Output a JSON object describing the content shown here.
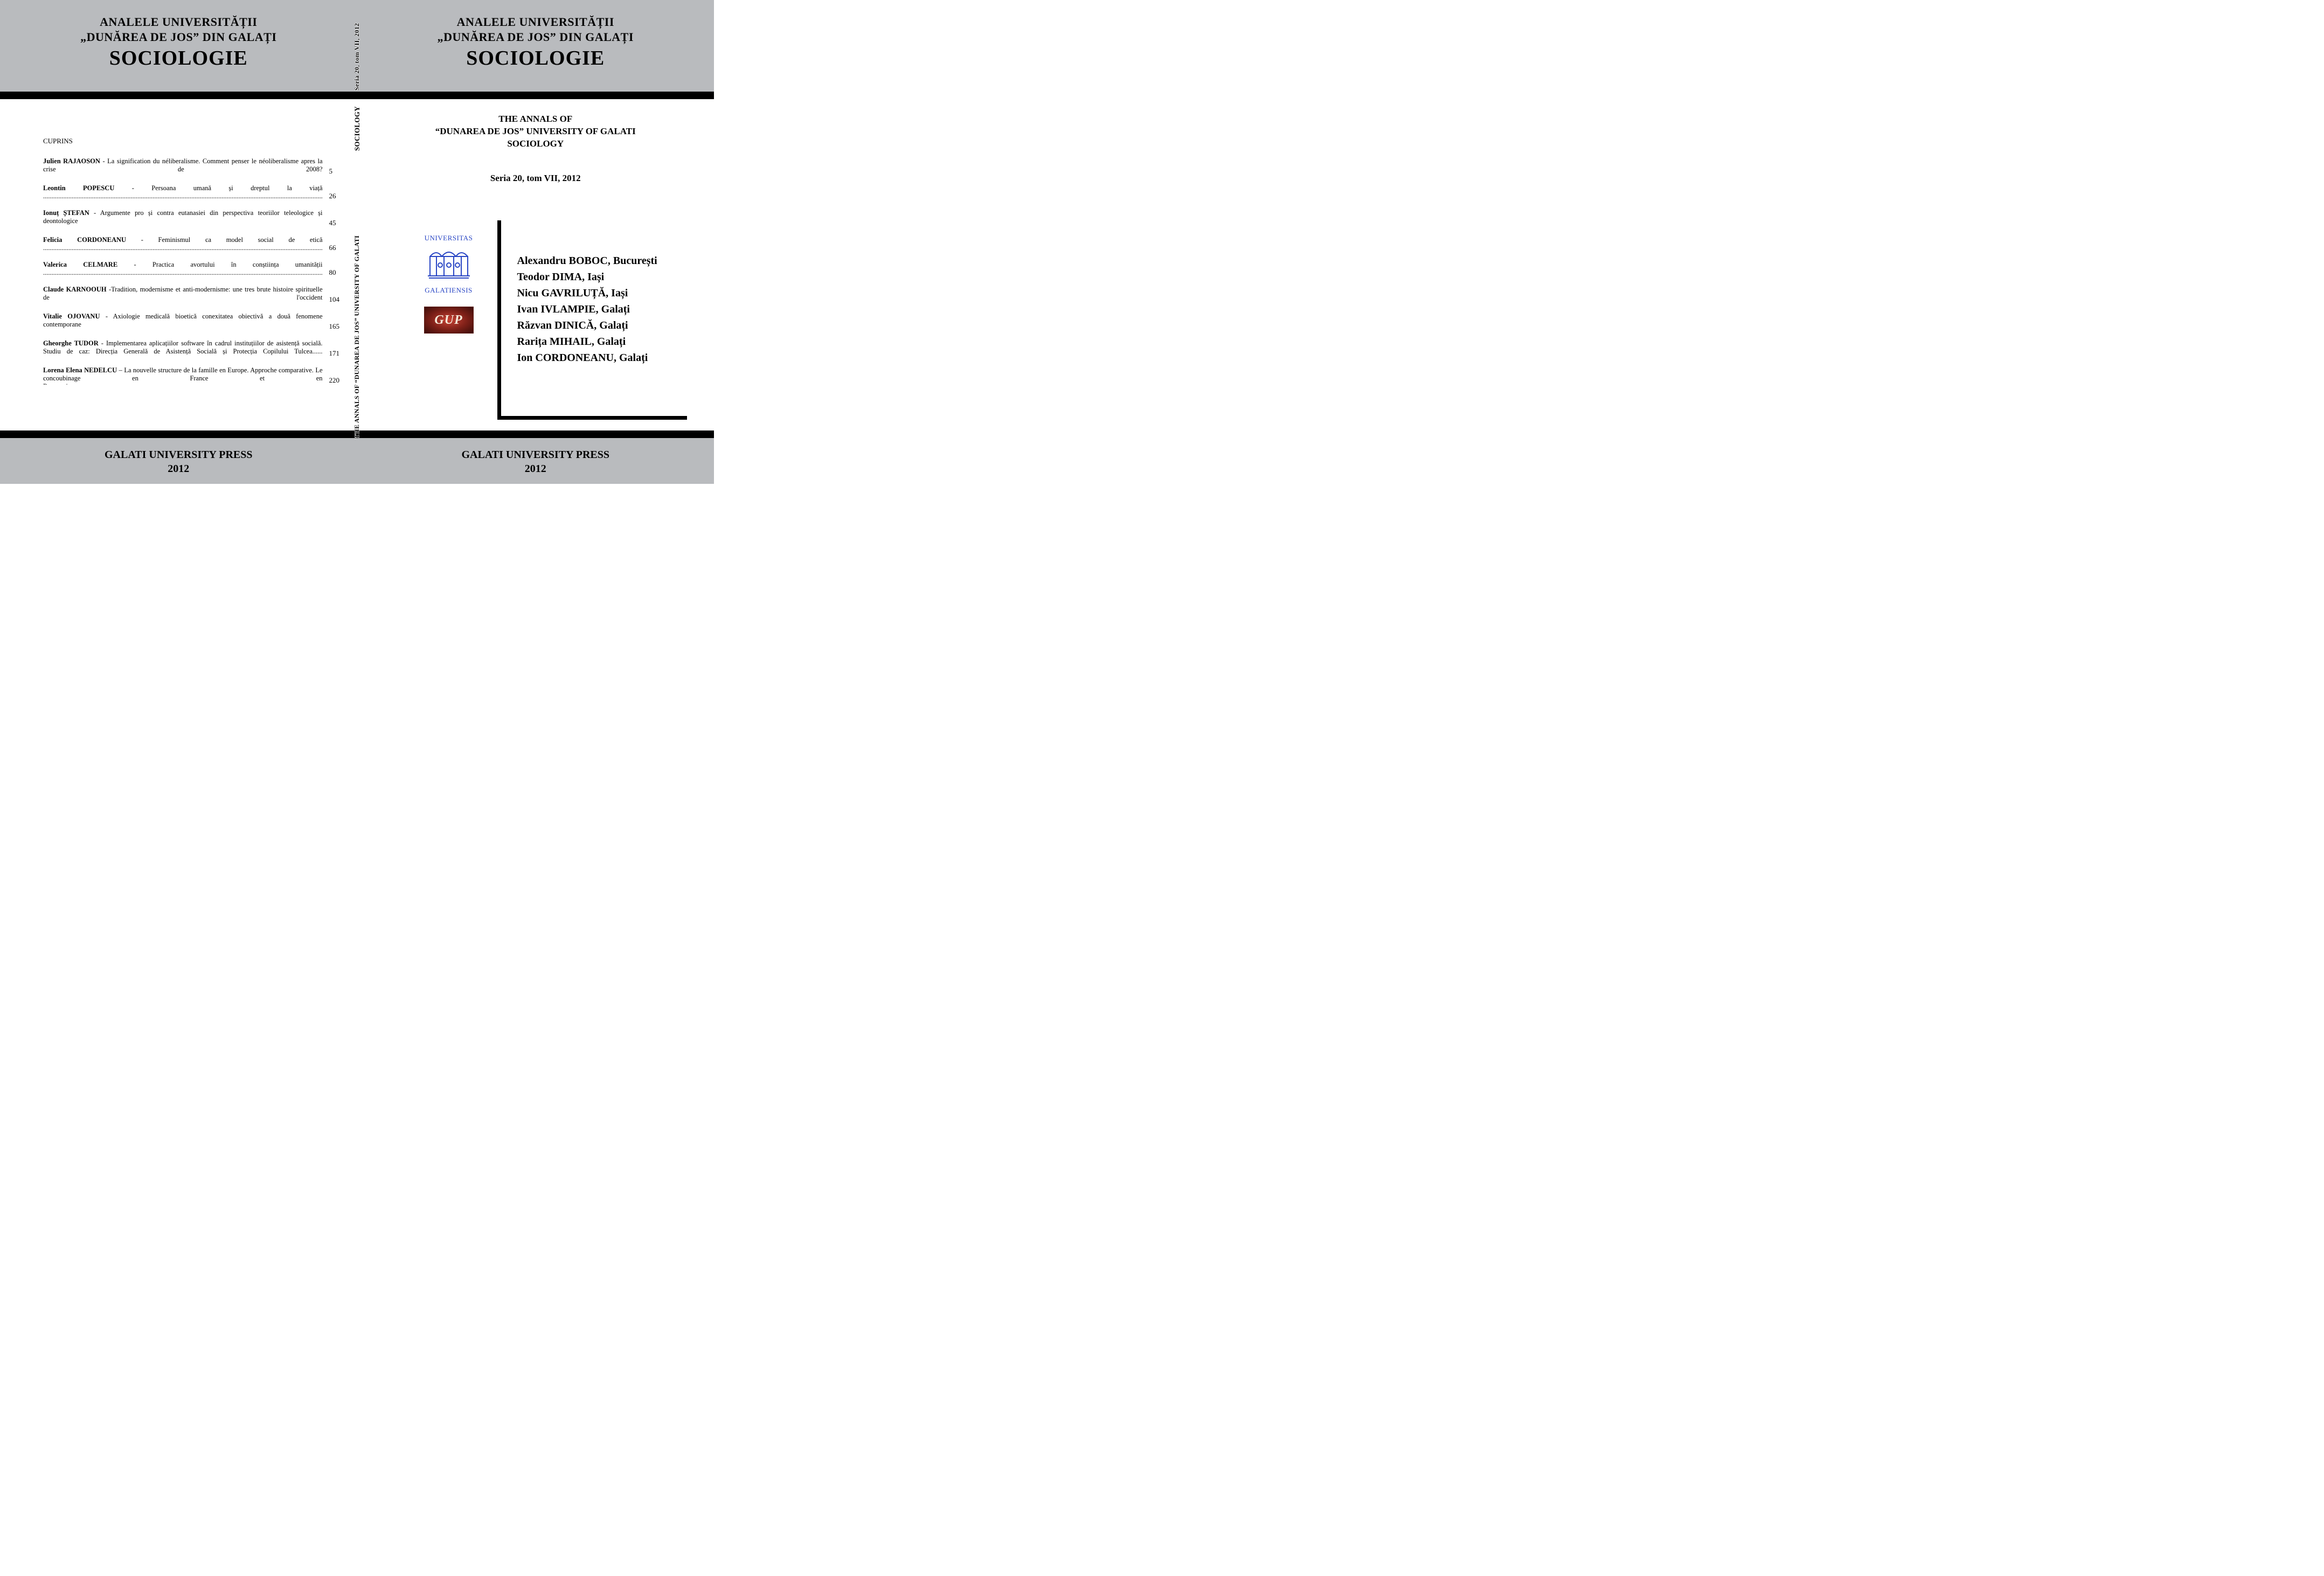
{
  "colors": {
    "band_bg": "#b9bbbe",
    "black": "#000000",
    "white": "#ffffff",
    "logo_blue": "#2845c4",
    "gup_center": "#c94234",
    "gup_edge": "#3b0e0a",
    "gup_text": "#f4e9d9"
  },
  "typography": {
    "title_line_fontsize": 22,
    "title_main_fontsize": 38,
    "body_fontsize": 12.5,
    "contributor_fontsize": 20,
    "press_fontsize": 20
  },
  "back": {
    "title_line1": "ANALELE UNIVERSITĂȚII",
    "title_line2": "„DUNĂREA DE JOS” DIN GALAȚI",
    "title_main": "SOCIOLOGIE",
    "toc_heading": "CUPRINS",
    "entries": [
      {
        "author": "Julien RAJAOSON",
        "title": " - La signification du néliberalisme. Comment penser le néoliberalisme apres la crise de 2008? ",
        "page": "5"
      },
      {
        "author": "Leontin POPESCU",
        "title": " - Persoana umană și dreptul la viață ",
        "page": "26"
      },
      {
        "author": "Ionuț ȘTEFAN",
        "title": " - Argumente pro și contra eutanasiei din perspectiva teoriilor teleologice și deontologice ",
        "page": "45"
      },
      {
        "author": "Felicia CORDONEANU",
        "title": " - Feminismul ca model social de etică ",
        "page": "66"
      },
      {
        "author": "Valerica CELMARE",
        "title": " - Practica avortului în conștiința umanității ",
        "page": "80"
      },
      {
        "author": "Claude KARNOOUH",
        "title": " -Tradition, modernisme et anti-modernisme: une tres brute histoire spirituelle de l'occident ",
        "page": "104"
      },
      {
        "author": "Vitalie OJOVANU",
        "title": " - Axiologie  medicală bioetică conexitatea  obiectivă a  două fenomene contemporane ",
        "page": "165"
      },
      {
        "author": "Gheorghe TUDOR",
        "title": " - Implementarea aplicațiilor software în cadrul instituțiilor de asistență socială.  Studiu de caz:   Direcția Generală de Asistență  Socială și Protecția Copilului  Tulcea...... ",
        "page": "171"
      },
      {
        "author": "Lorena Elena NEDELCU",
        "title": " – La nouvelle structure de la famille en Europe. Approche comparative. Le concoubinage en France et en Roumanie",
        "page": "220"
      }
    ],
    "press_line1": "GALATI UNIVERSITY PRESS",
    "press_line2": "2012"
  },
  "front": {
    "title_line1": "ANALELE UNIVERSITĂȚII",
    "title_line2": "„DUNĂREA DE JOS” DIN GALAȚI",
    "title_main": "SOCIOLOGIE",
    "en_title_line1": "THE ANNALS OF",
    "en_title_line2": "“DUNAREA DE JOS” UNIVERSITY OF GALATI",
    "en_title_line3": "SOCIOLOGY",
    "seria": "Seria 20, tom VII, 2012",
    "logo_top": "UNIVERSITAS",
    "logo_bottom": "GALATIENSIS",
    "gup_text": "GUP",
    "contributors": [
      "Alexandru BOBOC, București",
      "Teodor DIMA, Iași",
      "Nicu GAVRILUȚĂ, Iași",
      "Ivan IVLAMPIE, Galați",
      "Răzvan DINICĂ, Galați",
      "Rarița MIHAIL, Galați",
      "Ion CORDONEANU, Galați"
    ],
    "press_line1": "GALATI UNIVERSITY PRESS",
    "press_line2": "2012"
  },
  "spine": {
    "seg1": "Seria 20, tom VII, 2012",
    "seg2": "SOCIOLOGY",
    "seg3": "THE ANNALS OF “DUNAREA DE JOS” UNIVERSITY OF GALATI"
  }
}
